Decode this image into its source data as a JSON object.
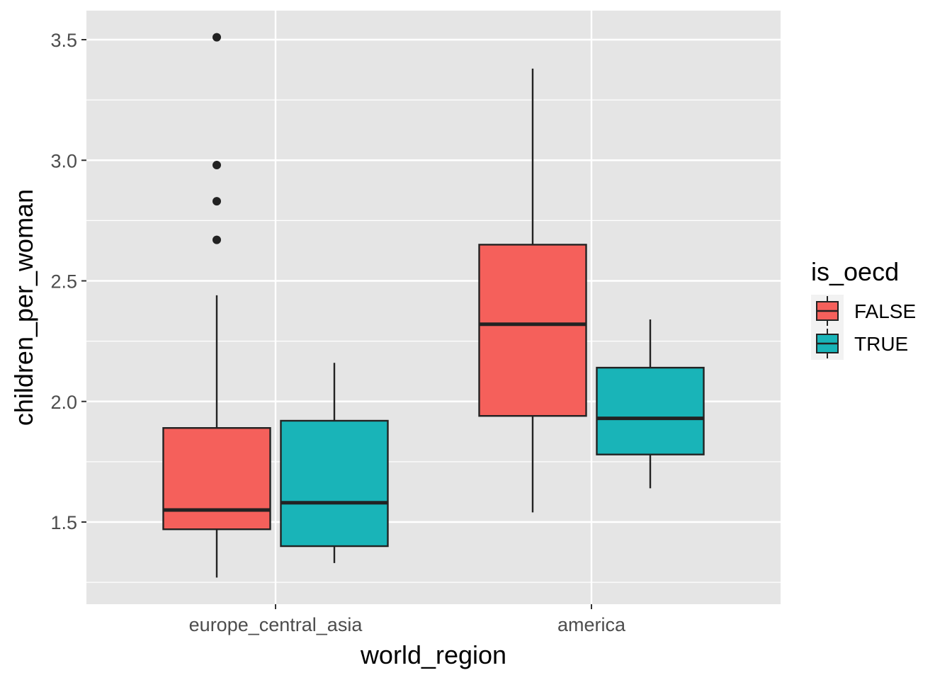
{
  "chart_data": {
    "type": "boxplot",
    "xlabel": "world_region",
    "ylabel": "children_per_woman",
    "categories": [
      "europe_central_asia",
      "america"
    ],
    "ylim": [
      1.2,
      3.62
    ],
    "yticks": [
      1.5,
      2.0,
      2.5,
      3.0,
      3.5
    ],
    "ytick_labels": [
      "1.5",
      "2.0",
      "2.5",
      "3.0",
      "3.5"
    ],
    "grid": true,
    "legend": {
      "title": "is_oecd",
      "position": "right",
      "entries": [
        "FALSE",
        "TRUE"
      ]
    },
    "series": [
      {
        "name": "FALSE",
        "color": "#F8766D",
        "boxes": [
          {
            "category": "europe_central_asia",
            "whisker_low": 1.27,
            "q1": 1.47,
            "median": 1.55,
            "q3": 1.89,
            "whisker_high": 2.44,
            "outliers": [
              2.67,
              2.83,
              2.98,
              3.51
            ]
          },
          {
            "category": "america",
            "whisker_low": 1.54,
            "q1": 1.94,
            "median": 2.32,
            "q3": 2.65,
            "whisker_high": 3.38,
            "outliers": []
          }
        ]
      },
      {
        "name": "TRUE",
        "color": "#00BFC4",
        "boxes": [
          {
            "category": "europe_central_asia",
            "whisker_low": 1.33,
            "q1": 1.4,
            "median": 1.58,
            "q3": 1.92,
            "whisker_high": 2.16,
            "outliers": []
          },
          {
            "category": "america",
            "whisker_low": 1.64,
            "q1": 1.78,
            "median": 1.93,
            "q3": 2.14,
            "whisker_high": 2.34,
            "outliers": []
          }
        ]
      }
    ],
    "colors": {
      "panel_background": "#E5E5E5",
      "grid": "#FFFFFF",
      "box_outline": "#222222",
      "false_fill": "#F5605B",
      "true_fill": "#19B4B8"
    }
  }
}
